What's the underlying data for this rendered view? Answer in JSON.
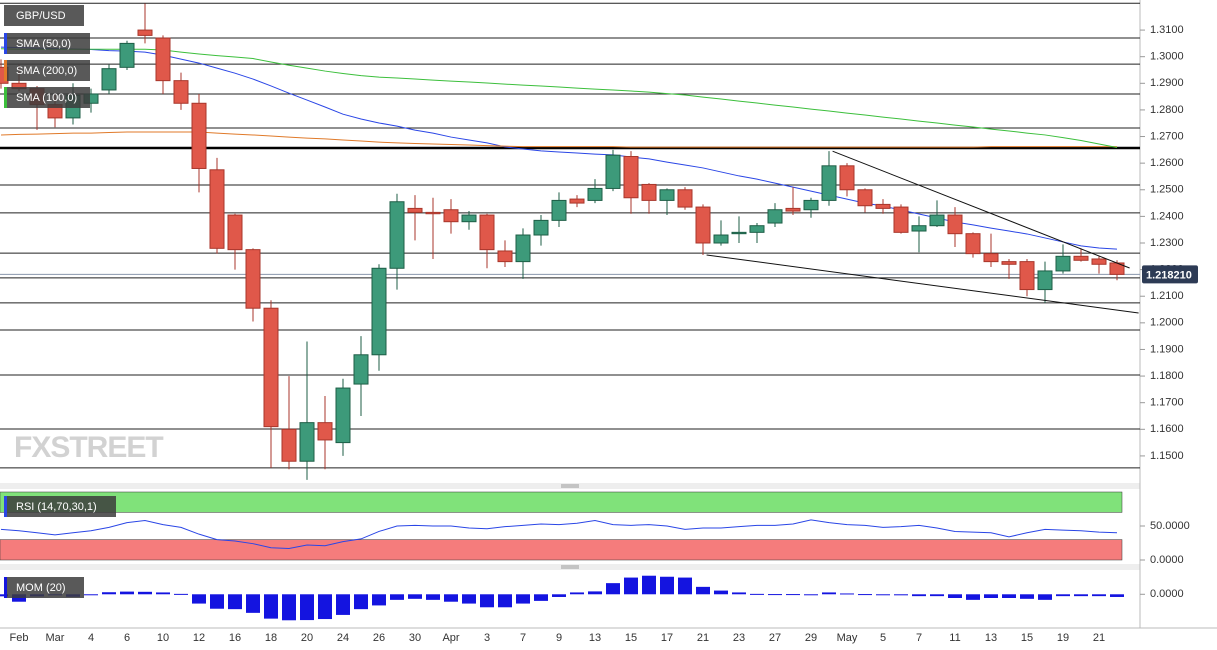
{
  "chart_data": [
    {
      "type": "candlestick",
      "title": "GBP/USD",
      "categories": [
        null,
        "Feb",
        null,
        "Mar",
        null,
        "4",
        null,
        "6",
        null,
        "10",
        null,
        "12",
        null,
        "16",
        null,
        "18",
        null,
        "20",
        null,
        "24",
        null,
        "26",
        null,
        "30",
        null,
        "Apr",
        null,
        "3",
        null,
        "7",
        null,
        "9",
        null,
        "13",
        null,
        "15",
        null,
        "17",
        null,
        "21",
        null,
        "23",
        null,
        "27",
        null,
        "29",
        null,
        "May",
        null,
        "5",
        null,
        "7",
        null,
        "11",
        null,
        "13",
        null,
        "15",
        null,
        "19",
        null,
        "21",
        null
      ],
      "open": [
        1.296,
        1.29,
        1.288,
        1.282,
        1.277,
        1.2825,
        1.2875,
        1.296,
        1.31,
        1.307,
        1.291,
        1.2825,
        1.2575,
        1.2405,
        1.2275,
        1.2055,
        1.16,
        1.148,
        1.1625,
        1.155,
        1.177,
        1.188,
        1.2205,
        1.243,
        1.2415,
        1.2425,
        1.238,
        1.2405,
        1.227,
        1.223,
        1.233,
        1.2385,
        1.2465,
        1.246,
        1.2505,
        1.2625,
        1.252,
        1.246,
        1.25,
        1.2435,
        1.23,
        1.2335,
        1.234,
        1.2375,
        1.243,
        1.2425,
        1.246,
        1.259,
        1.25,
        1.2445,
        1.2435,
        1.2345,
        1.2365,
        1.2405,
        1.2335,
        1.226,
        1.223,
        1.223,
        1.2125,
        1.2195,
        1.225,
        1.224,
        1.2225
      ],
      "high": [
        1.299,
        1.297,
        1.289,
        1.286,
        1.29,
        1.288,
        1.297,
        1.306,
        1.32,
        1.308,
        1.294,
        1.286,
        1.262,
        1.241,
        1.228,
        1.2085,
        1.18,
        1.193,
        1.1725,
        1.179,
        1.195,
        1.222,
        1.2485,
        1.248,
        1.247,
        1.2465,
        1.242,
        1.241,
        1.231,
        1.2355,
        1.2405,
        1.249,
        1.248,
        1.254,
        1.265,
        1.2645,
        1.2525,
        1.2505,
        1.251,
        1.2445,
        1.2385,
        1.24,
        1.2375,
        1.245,
        1.251,
        1.247,
        1.2645,
        1.26,
        1.2505,
        1.2465,
        1.2445,
        1.24,
        1.246,
        1.2435,
        1.234,
        1.2335,
        1.224,
        1.224,
        1.223,
        1.2295,
        1.228,
        1.225,
        1.2235
      ],
      "low": [
        1.288,
        1.287,
        1.2725,
        1.2735,
        1.2745,
        1.279,
        1.286,
        1.295,
        1.305,
        1.286,
        1.28,
        1.249,
        1.226,
        1.22,
        1.2005,
        1.1455,
        1.145,
        1.141,
        1.145,
        1.15,
        1.165,
        1.182,
        1.2125,
        1.231,
        1.224,
        1.2335,
        1.235,
        1.2205,
        1.221,
        1.2165,
        1.229,
        1.236,
        1.2435,
        1.245,
        1.2495,
        1.241,
        1.241,
        1.2405,
        1.2425,
        1.2255,
        1.229,
        1.23,
        1.23,
        1.236,
        1.2405,
        1.2395,
        1.244,
        1.2475,
        1.2415,
        1.241,
        1.2335,
        1.2265,
        1.236,
        1.2285,
        1.2245,
        1.221,
        1.2165,
        1.21,
        1.2075,
        1.2185,
        1.223,
        1.2185,
        1.216
      ],
      "close": [
        1.29,
        1.288,
        1.282,
        1.277,
        1.2855,
        1.286,
        1.2955,
        1.305,
        1.308,
        1.291,
        1.2825,
        1.258,
        1.228,
        1.2275,
        1.2055,
        1.161,
        1.148,
        1.1625,
        1.156,
        1.1755,
        1.188,
        1.2205,
        1.2455,
        1.2415,
        1.241,
        1.238,
        1.2405,
        1.2275,
        1.223,
        1.233,
        1.2385,
        1.246,
        1.245,
        1.2505,
        1.263,
        1.247,
        1.246,
        1.25,
        1.2435,
        1.23,
        1.233,
        1.234,
        1.2365,
        1.2425,
        1.242,
        1.246,
        1.259,
        1.25,
        1.244,
        1.243,
        1.234,
        1.2365,
        1.2405,
        1.2335,
        1.226,
        1.223,
        1.222,
        1.2125,
        1.2195,
        1.225,
        1.2235,
        1.222,
        1.21821
      ],
      "up_color": "#3d9a7a",
      "down_color": "#e0584a",
      "ylim": [
        1.1402,
        1.3213
      ],
      "yticks": [
        {
          "value": 1.31,
          "label": "1.3100"
        },
        {
          "value": 1.3,
          "label": "1.3000"
        },
        {
          "value": 1.29,
          "label": "1.2900"
        },
        {
          "value": 1.28,
          "label": "1.2800"
        },
        {
          "value": 1.27,
          "label": "1.2700"
        },
        {
          "value": 1.26,
          "label": "1.2600"
        },
        {
          "value": 1.25,
          "label": "1.2500"
        },
        {
          "value": 1.24,
          "label": "1.2400"
        },
        {
          "value": 1.23,
          "label": "1.2300"
        },
        {
          "value": 1.22,
          "label": "1.2200"
        },
        {
          "value": 1.21,
          "label": "1.2100"
        },
        {
          "value": 1.2,
          "label": "1.2000"
        },
        {
          "value": 1.19,
          "label": "1.1900"
        },
        {
          "value": 1.18,
          "label": "1.1800"
        },
        {
          "value": 1.17,
          "label": "1.1700"
        },
        {
          "value": 1.16,
          "label": "1.1600"
        },
        {
          "value": 1.15,
          "label": "1.1500"
        }
      ],
      "last_price": {
        "value": 1.21821,
        "label": "1.218210"
      },
      "overlays": [
        {
          "name": "SMA (50,0)",
          "color": "#2a46e6",
          "values": [
            1.3036,
            1.3034,
            1.3032,
            1.3031,
            1.3029,
            1.3027,
            1.3023,
            1.3021,
            1.3017,
            1.3006,
            1.2991,
            1.2976,
            1.2957,
            1.2938,
            1.2916,
            1.289,
            1.2863,
            1.2837,
            1.2811,
            1.2784,
            1.2766,
            1.2751,
            1.2739,
            1.2724,
            1.2713,
            1.2698,
            1.2687,
            1.2676,
            1.2661,
            1.2653,
            1.2646,
            1.2642,
            1.2638,
            1.2634,
            1.2631,
            1.2623,
            1.2616,
            1.2604,
            1.2593,
            1.2582,
            1.2567,
            1.2552,
            1.254,
            1.2525,
            1.251,
            1.2495,
            1.248,
            1.2465,
            1.245,
            1.2439,
            1.2424,
            1.2409,
            1.2394,
            1.2379,
            1.2368,
            1.2356,
            1.2345,
            1.2334,
            1.2319,
            1.2304,
            1.2289,
            1.2281,
            1.2277
          ]
        },
        {
          "name": "SMA (200,0)",
          "color": "#e07a2a",
          "values": [
            1.2706,
            1.2708,
            1.2709,
            1.2711,
            1.2713,
            1.2713,
            1.2715,
            1.2717,
            1.2717,
            1.2717,
            1.2717,
            1.2717,
            1.2713,
            1.2709,
            1.2706,
            1.2702,
            1.2698,
            1.2694,
            1.2691,
            1.2687,
            1.2683,
            1.2679,
            1.2676,
            1.2674,
            1.2672,
            1.267,
            1.2668,
            1.2666,
            1.2664,
            1.2662,
            1.2662,
            1.2662,
            1.2662,
            1.2662,
            1.2662,
            1.266,
            1.266,
            1.266,
            1.266,
            1.266,
            1.266,
            1.266,
            1.266,
            1.266,
            1.266,
            1.266,
            1.266,
            1.266,
            1.266,
            1.266,
            1.266,
            1.266,
            1.266,
            1.266,
            1.266,
            1.2662,
            1.2662,
            1.2662,
            1.2662,
            1.2662,
            1.2662,
            1.2662,
            1.2662
          ]
        },
        {
          "name": "SMA (100,0)",
          "color": "#3cbf3c",
          "values": [
            1.303,
            1.3028,
            1.3028,
            1.3028,
            1.3028,
            1.3028,
            1.3028,
            1.3028,
            1.3028,
            1.3025,
            1.3017,
            1.301,
            1.3004,
            1.2999,
            1.2993,
            1.298,
            1.2968,
            1.2957,
            1.2946,
            1.2937,
            1.2929,
            1.2923,
            1.292,
            1.2916,
            1.2912,
            1.2908,
            1.2905,
            1.2901,
            1.2897,
            1.2893,
            1.289,
            1.2886,
            1.2882,
            1.2878,
            1.2875,
            1.2871,
            1.2867,
            1.2861,
            1.2856,
            1.2848,
            1.2841,
            1.2833,
            1.2826,
            1.2818,
            1.2811,
            1.2803,
            1.2796,
            1.2788,
            1.2781,
            1.2773,
            1.2766,
            1.2758,
            1.2751,
            1.2743,
            1.2736,
            1.2728,
            1.2721,
            1.2713,
            1.2706,
            1.2696,
            1.2685,
            1.2672,
            1.2659
          ]
        }
      ],
      "hlines": [
        1.3201,
        1.307,
        1.2972,
        1.286,
        1.2732,
        1.2518,
        1.2413,
        1.2262,
        1.2169,
        1.2075,
        1.1973,
        1.1804,
        1.1601,
        1.1455
      ],
      "bold_hline": 1.2657,
      "trend_lines": [
        {
          "x": [
            46.2,
            62.7
          ],
          "y": [
            1.2645,
            1.2206
          ]
        },
        {
          "x": [
            39.2,
            63.2
          ],
          "y": [
            1.2255,
            1.2037
          ]
        }
      ],
      "watermark": "FXSTREET"
    },
    {
      "type": "line",
      "title": "RSI (14,70,30,1)",
      "color": "#2a46e6",
      "values": [
        45,
        43,
        40,
        37,
        40,
        43,
        48,
        55,
        58,
        52,
        48,
        38,
        30,
        28,
        24,
        18,
        17,
        22,
        21,
        27,
        31,
        42,
        50,
        51,
        50,
        50,
        47,
        46,
        49,
        51,
        53,
        52,
        54,
        58,
        52,
        51,
        52,
        50,
        45,
        47,
        47,
        49,
        51,
        51,
        53,
        59,
        55,
        52,
        51,
        48,
        49,
        51,
        47,
        42,
        41,
        40,
        34,
        40,
        45,
        44,
        43,
        41,
        40
      ],
      "ylim": [
        0,
        100
      ],
      "yticks": [
        {
          "value": 50,
          "label": "50.0000"
        },
        {
          "value": 0,
          "label": "0.0000"
        }
      ],
      "bands": [
        70,
        30
      ],
      "band_colors": [
        "#80e27a",
        "#f57c7c"
      ]
    },
    {
      "type": "bar",
      "title": "MOM (20)",
      "color": "#1414e0",
      "values": [
        -0.01,
        -0.036,
        -0.01,
        -0.005,
        -0.012,
        -0.003,
        0.01,
        0.013,
        0.012,
        0.009,
        0.002,
        -0.045,
        -0.07,
        -0.072,
        -0.09,
        -0.118,
        -0.126,
        -0.125,
        -0.12,
        -0.1,
        -0.072,
        -0.054,
        -0.027,
        -0.022,
        -0.027,
        -0.036,
        -0.045,
        -0.063,
        -0.063,
        -0.045,
        -0.032,
        -0.013,
        0.009,
        0.014,
        0.054,
        0.081,
        0.09,
        0.085,
        0.081,
        0.036,
        0.018,
        0.009,
        0.002,
        0.001,
        0.001,
        -0.004,
        0.009,
        0.004,
        0.001,
        -0.004,
        -0.005,
        -0.009,
        -0.009,
        -0.018,
        -0.027,
        -0.018,
        -0.018,
        -0.022,
        -0.027,
        -0.009,
        -0.009,
        -0.009,
        -0.013
      ],
      "ylim": [
        -0.144,
        0.108
      ],
      "yticks": [
        {
          "value": 0,
          "label": "0.0000"
        }
      ]
    }
  ]
}
